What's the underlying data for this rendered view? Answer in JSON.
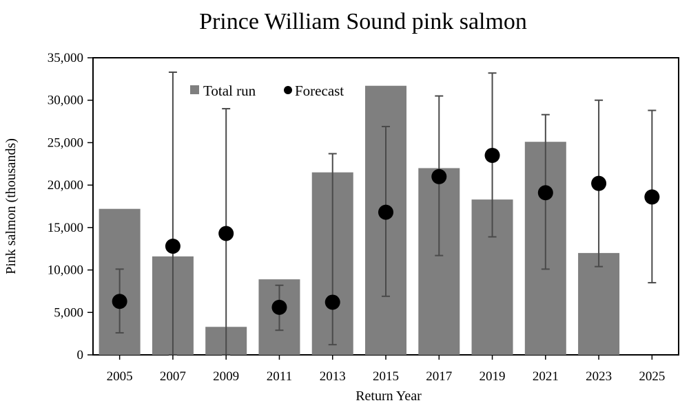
{
  "chart_data": {
    "type": "bar",
    "title": "Prince William Sound pink salmon",
    "xlabel": "Return Year",
    "ylabel": "Pink salmon (thousands)",
    "ylim": [
      0,
      35000
    ],
    "yticks": [
      "0",
      "5,000",
      "10,000",
      "15,000",
      "20,000",
      "25,000",
      "30,000",
      "35,000"
    ],
    "ytick_values": [
      0,
      5000,
      10000,
      15000,
      20000,
      25000,
      30000,
      35000
    ],
    "categories": [
      "2005",
      "2007",
      "2009",
      "2011",
      "2013",
      "2015",
      "2017",
      "2019",
      "2021",
      "2023",
      "2025"
    ],
    "legend_position": "top-left",
    "grid": false,
    "series": [
      {
        "name": "Total run",
        "type": "bar",
        "color": "#7f7f7f",
        "values": [
          17200,
          11600,
          3300,
          8900,
          21500,
          31700,
          22000,
          18300,
          25100,
          12000,
          null
        ]
      },
      {
        "name": "Forecast",
        "type": "scatter",
        "color": "#000000",
        "values": [
          6300,
          12800,
          14300,
          5600,
          6200,
          16800,
          21000,
          23500,
          19100,
          20200,
          18600
        ],
        "error_low": [
          2600,
          0,
          0,
          2900,
          1200,
          6900,
          11700,
          13900,
          10100,
          10400,
          8500
        ],
        "error_high": [
          10100,
          33300,
          29000,
          8200,
          23700,
          26900,
          30500,
          33200,
          28300,
          30000,
          28800
        ]
      }
    ]
  }
}
